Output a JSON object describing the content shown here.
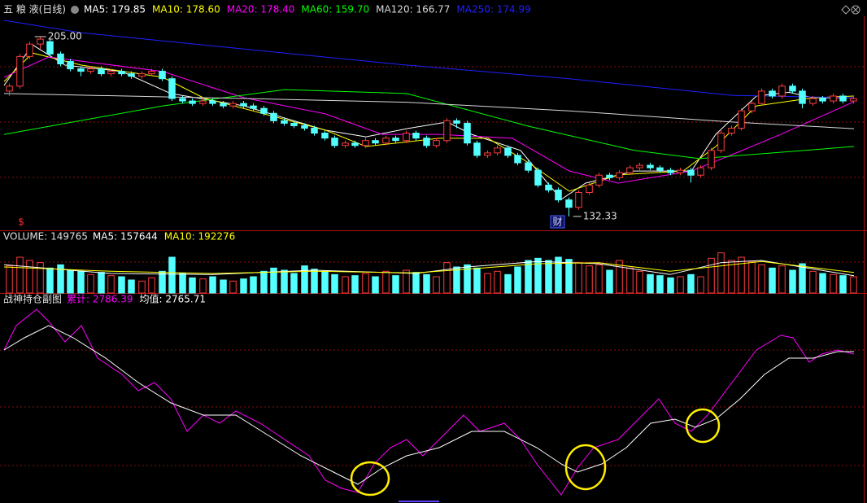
{
  "chart_data": [
    {
      "type": "candlestick",
      "title": "五 粮 液(日线)",
      "up_color": "#ff3c3c",
      "down_color": "#54ffff",
      "xlim": [
        -0.5,
        83.5
      ],
      "ylim": [
        126.7,
        213.9
      ],
      "annotations": {
        "high": "205.00",
        "low": "132.33",
        "marker": "财",
        "signal": "$"
      },
      "candles": [
        [
          183,
          186,
          181,
          185
        ],
        [
          185,
          198,
          184,
          197
        ],
        [
          197,
          203,
          196,
          202
        ],
        [
          202,
          205,
          200,
          204
        ],
        [
          203,
          204,
          197,
          198
        ],
        [
          198,
          199,
          193,
          194
        ],
        [
          195,
          196,
          191,
          192
        ],
        [
          192,
          193,
          189,
          191
        ],
        [
          191,
          193,
          190,
          192
        ],
        [
          192,
          193,
          189,
          190
        ],
        [
          190,
          192,
          189,
          191
        ],
        [
          191,
          192,
          189,
          190
        ],
        [
          190,
          191,
          188,
          189
        ],
        [
          189,
          191,
          188,
          190
        ],
        [
          190,
          192,
          189,
          191
        ],
        [
          191,
          192,
          187,
          188
        ],
        [
          188,
          189,
          179,
          180
        ],
        [
          180,
          181,
          178,
          179
        ],
        [
          179,
          180,
          177,
          178
        ],
        [
          178,
          180,
          177,
          179
        ],
        [
          179,
          180,
          177,
          178
        ],
        [
          178,
          179,
          176,
          177
        ],
        [
          177,
          179,
          176,
          178
        ],
        [
          178,
          179,
          176,
          177
        ],
        [
          177,
          178,
          175,
          176
        ],
        [
          176,
          177,
          173,
          174
        ],
        [
          174,
          175,
          170,
          171
        ],
        [
          171,
          172,
          169,
          170
        ],
        [
          170,
          171,
          168,
          169
        ],
        [
          169,
          170,
          167,
          168
        ],
        [
          168,
          169,
          165,
          166
        ],
        [
          166,
          167,
          163,
          164
        ],
        [
          164,
          165,
          160,
          161
        ],
        [
          161,
          163,
          160,
          162
        ],
        [
          162,
          163,
          160,
          161
        ],
        [
          161,
          164,
          160,
          163
        ],
        [
          163,
          164,
          161,
          162
        ],
        [
          162,
          165,
          161,
          164
        ],
        [
          164,
          165,
          162,
          163
        ],
        [
          163,
          167,
          162,
          166
        ],
        [
          166,
          167,
          163,
          164
        ],
        [
          164,
          165,
          160,
          161
        ],
        [
          161,
          164,
          160,
          163
        ],
        [
          163,
          172,
          162,
          171
        ],
        [
          171,
          172,
          168,
          170
        ],
        [
          170,
          171,
          161,
          162
        ],
        [
          162,
          163,
          156,
          157
        ],
        [
          157,
          159,
          156,
          158
        ],
        [
          158,
          161,
          157,
          160
        ],
        [
          160,
          161,
          156,
          157
        ],
        [
          157,
          158,
          153,
          154
        ],
        [
          154,
          155,
          150,
          151
        ],
        [
          151,
          152,
          144,
          145
        ],
        [
          145,
          146,
          142,
          143
        ],
        [
          143,
          144,
          138,
          139
        ],
        [
          139,
          140,
          132.33,
          136
        ],
        [
          136,
          143,
          135,
          142
        ],
        [
          142,
          146,
          141,
          145
        ],
        [
          145,
          150,
          144,
          149
        ],
        [
          149,
          150,
          147,
          148
        ],
        [
          148,
          151,
          147,
          150
        ],
        [
          150,
          153,
          149,
          152
        ],
        [
          152,
          154,
          151,
          153
        ],
        [
          153,
          154,
          151,
          152
        ],
        [
          152,
          153,
          150,
          151
        ],
        [
          151,
          152,
          149,
          150
        ],
        [
          150,
          152,
          149,
          151
        ],
        [
          151,
          152,
          146,
          149
        ],
        [
          149,
          153,
          148,
          152
        ],
        [
          152,
          160,
          151,
          159
        ],
        [
          159,
          167,
          158,
          166
        ],
        [
          166,
          169,
          165,
          168
        ],
        [
          168,
          176,
          167,
          175
        ],
        [
          175,
          179,
          174,
          178
        ],
        [
          178,
          184,
          177,
          183
        ],
        [
          183,
          184,
          180,
          181
        ],
        [
          181,
          186,
          180,
          185
        ],
        [
          185,
          186,
          182,
          183
        ],
        [
          183,
          184,
          176,
          178
        ],
        [
          178,
          181,
          177,
          180
        ],
        [
          180,
          181,
          178,
          179
        ],
        [
          179,
          182,
          178,
          181
        ],
        [
          181,
          182,
          178,
          179
        ],
        [
          179,
          181,
          178,
          180
        ]
      ],
      "series": [
        {
          "name": "MA5: 179.85",
          "color": "#ffffff",
          "x": [
            -0.5,
            2.3,
            5.5,
            11.1,
            15.9,
            23.1,
            31.1,
            35.1,
            39.1,
            43.1,
            45.5,
            50.3,
            54.3,
            56.7,
            61.5,
            67.1,
            69.5,
            73.5,
            76.7,
            79.1,
            83.1
          ],
          "values": [
            185.3,
            201.7,
            193.5,
            190.9,
            182,
            177,
            167.2,
            164.5,
            167.8,
            170.5,
            165.5,
            159,
            139.2,
            145.8,
            150.7,
            150.7,
            165.5,
            181,
            182.5,
            180.3,
            180.3
          ]
        },
        {
          "name": "MA10: 178.60",
          "color": "#ffff00",
          "x": [
            -0.5,
            2.3,
            7.1,
            15.1,
            19.1,
            31.1,
            35.1,
            42.3,
            47.1,
            51.1,
            55.1,
            59.9,
            66.3,
            69.5,
            73.5,
            79.1,
            83.1
          ],
          "values": [
            186.9,
            198.4,
            193.5,
            188.6,
            180.3,
            167.2,
            160.6,
            163.9,
            163.9,
            154,
            142.5,
            149.1,
            150.7,
            160.6,
            177,
            180.3,
            181
          ]
        },
        {
          "name": "MA20: 178.40",
          "color": "#ff00ff",
          "x": [
            -0.5,
            3.9,
            15.1,
            23.1,
            31.1,
            36.7,
            42.3,
            49.5,
            55.1,
            59.9,
            67.1,
            71.1,
            75.9,
            83.1
          ],
          "values": [
            188.6,
            196.8,
            190.9,
            180.3,
            173.8,
            165.5,
            165.5,
            163.9,
            150.7,
            145.8,
            150.7,
            157.3,
            165.5,
            178.7
          ]
        },
        {
          "name": "MA60: 159.70",
          "color": "#00ff00",
          "x": [
            -0.5,
            15.1,
            27.1,
            39.1,
            51.1,
            61.5,
            67.9,
            83.1
          ],
          "values": [
            165.5,
            177,
            183.6,
            182,
            168.8,
            159,
            155.7,
            160.6
          ]
        },
        {
          "name": "MA120: 166.77",
          "color": "#d8d8d8",
          "x": [
            -0.5,
            23.1,
            39.1,
            55.1,
            71.1,
            83.1
          ],
          "values": [
            182,
            180,
            178.5,
            175,
            170.5,
            167.8
          ]
        },
        {
          "name": "MA250: 174.99",
          "color": "#2020ff",
          "x": [
            -0.5,
            7.1,
            23.1,
            39.1,
            55.1,
            71.1,
            83.1
          ],
          "values": [
            211.6,
            206.6,
            200,
            193.5,
            188,
            181.3,
            180.3
          ]
        }
      ]
    },
    {
      "type": "bar",
      "title": "VOLUME: 149765",
      "xlim": [
        -0.5,
        83.5
      ],
      "ylim": [
        0,
        450000
      ],
      "values": [
        250000,
        330000,
        300000,
        280000,
        230000,
        260000,
        210000,
        200000,
        170000,
        190000,
        160000,
        150000,
        120000,
        110000,
        140000,
        200000,
        330000,
        180000,
        140000,
        130000,
        150000,
        120000,
        110000,
        130000,
        150000,
        200000,
        230000,
        210000,
        180000,
        250000,
        220000,
        200000,
        170000,
        150000,
        160000,
        180000,
        150000,
        200000,
        160000,
        210000,
        190000,
        170000,
        150000,
        280000,
        240000,
        260000,
        230000,
        180000,
        200000,
        170000,
        240000,
        300000,
        320000,
        300000,
        330000,
        310000,
        280000,
        250000,
        260000,
        210000,
        300000,
        230000,
        200000,
        170000,
        160000,
        140000,
        150000,
        170000,
        150000,
        320000,
        370000,
        300000,
        330000,
        290000,
        260000,
        230000,
        250000,
        210000,
        270000,
        200000,
        180000,
        170000,
        160000,
        149765
      ],
      "series": [
        {
          "name": "MA5: 157644",
          "color": "#ffffff",
          "x": [
            -0.5,
            10,
            20,
            30,
            40,
            45,
            52,
            58,
            65,
            70,
            74,
            83.1
          ],
          "values": [
            260000,
            180000,
            170000,
            210000,
            180000,
            240000,
            290000,
            270000,
            170000,
            280000,
            300000,
            160000
          ]
        },
        {
          "name": "MA10: 192276",
          "color": "#ffff00",
          "x": [
            -0.5,
            10,
            20,
            30,
            40,
            45,
            52,
            58,
            65,
            70,
            74,
            83.1
          ],
          "values": [
            240000,
            200000,
            180000,
            200000,
            185000,
            220000,
            270000,
            280000,
            200000,
            250000,
            290000,
            190000
          ]
        }
      ]
    },
    {
      "type": "line",
      "title": "战神持仓副图",
      "xlim": [
        -0.5,
        83.5
      ],
      "ylim": [
        2580,
        2836
      ],
      "series": [
        {
          "name": "累计: 2786.39",
          "color": "#ff00ff",
          "x": [
            -0.5,
            0.7,
            2.7,
            3.9,
            5.5,
            7.1,
            8.7,
            11.1,
            12.7,
            14.3,
            15.9,
            17.5,
            19.1,
            20.7,
            22.3,
            24.7,
            27.1,
            29.5,
            31.1,
            32.7,
            34.3,
            35.9,
            37.5,
            39.1,
            40.7,
            43.1,
            44.7,
            46.3,
            48.7,
            50.3,
            51.9,
            54.3,
            55.9,
            57.5,
            59.9,
            61.5,
            63.9,
            65.5,
            67.1,
            68.7,
            71.1,
            73.5,
            75.9,
            77.1,
            78.7,
            79.9,
            81.5,
            83.1
          ],
          "values": [
            2768,
            2798,
            2818,
            2803,
            2778,
            2798,
            2758,
            2738,
            2718,
            2728,
            2708,
            2668,
            2688,
            2678,
            2693,
            2678,
            2658,
            2638,
            2608,
            2598,
            2593,
            2628,
            2648,
            2658,
            2638,
            2668,
            2688,
            2668,
            2678,
            2658,
            2628,
            2590,
            2623,
            2648,
            2658,
            2678,
            2708,
            2678,
            2668,
            2688,
            2728,
            2768,
            2786,
            2783,
            2753,
            2763,
            2768,
            2763
          ]
        },
        {
          "name": "均值: 2765.71",
          "color": "#ffffff",
          "x": [
            -0.5,
            1.5,
            3.9,
            6.3,
            9.5,
            12.7,
            15.9,
            19.1,
            22.3,
            25.5,
            28.7,
            31.9,
            34.3,
            36.7,
            39.1,
            42.3,
            45.5,
            48.7,
            51.9,
            54.3,
            55.9,
            58.3,
            60.7,
            63.1,
            65.5,
            67.5,
            69.5,
            71.9,
            74.3,
            76.7,
            79.1,
            81.5,
            83.1
          ],
          "values": [
            2768,
            2783,
            2798,
            2783,
            2758,
            2728,
            2703,
            2688,
            2688,
            2663,
            2638,
            2618,
            2603,
            2623,
            2638,
            2648,
            2668,
            2668,
            2648,
            2628,
            2618,
            2628,
            2648,
            2678,
            2683,
            2673,
            2683,
            2708,
            2738,
            2758,
            2758,
            2766,
            2766
          ]
        }
      ]
    }
  ]
}
